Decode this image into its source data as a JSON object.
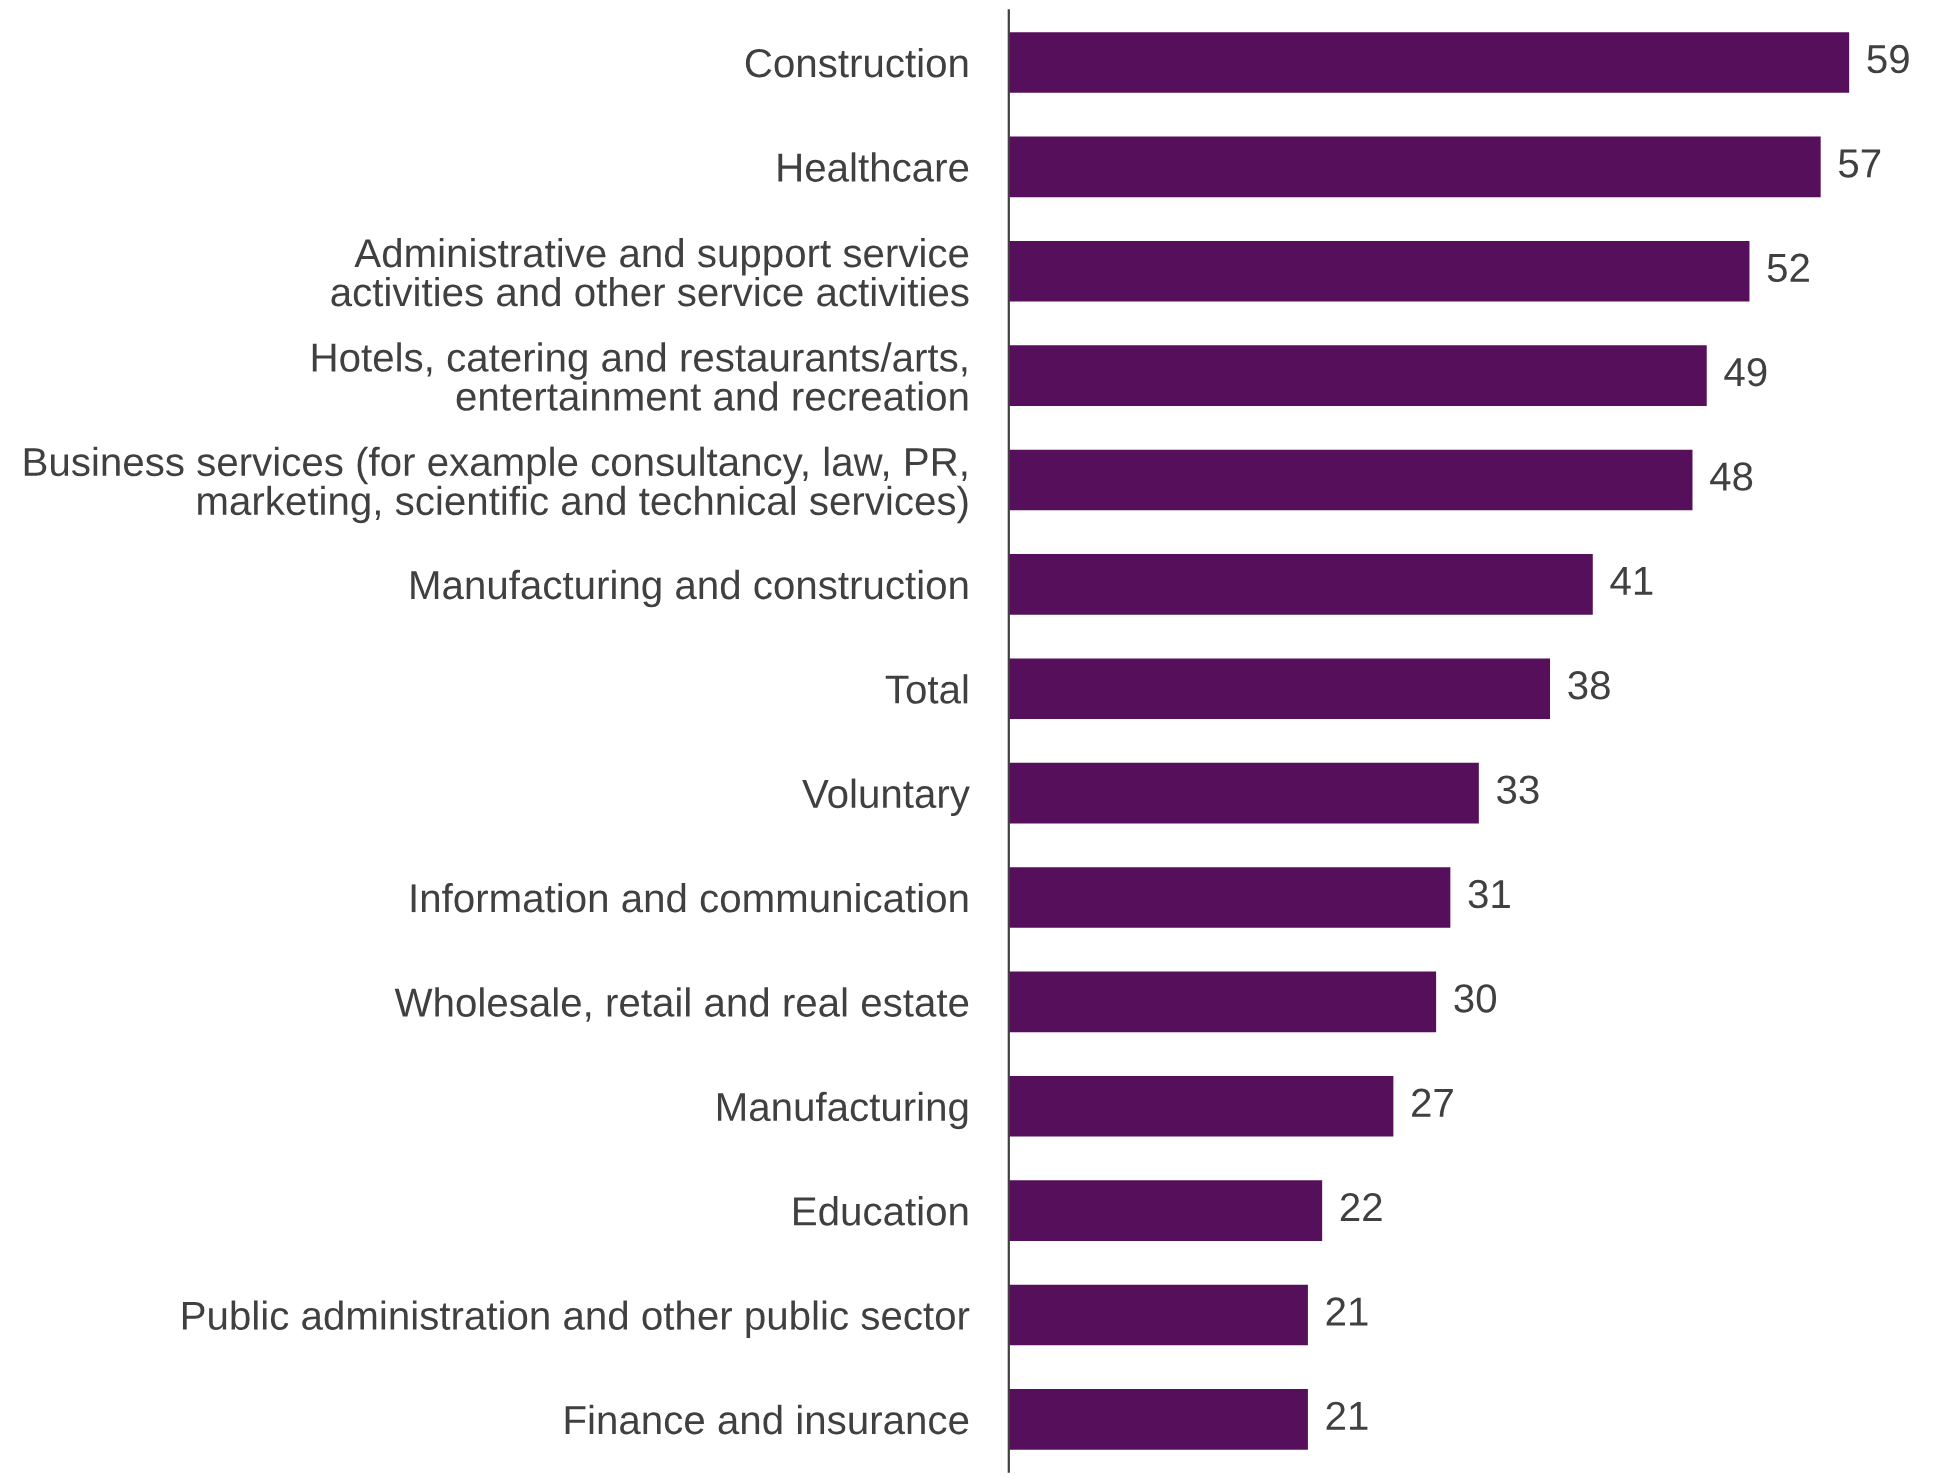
{
  "chart_data": {
    "type": "bar",
    "orientation": "horizontal",
    "categories": [
      "Construction",
      "Healthcare",
      "Administrative and support service\nactivities and other service activities",
      "Hotels, catering and restaurants/arts,\nentertainment and recreation",
      "Business services (for example consultancy, law, PR,\nmarketing, scientific and technical services)",
      "Manufacturing and construction",
      "Total",
      "Voluntary",
      "Information and communication",
      "Wholesale, retail and real estate",
      "Manufacturing",
      "Education",
      "Public administration and other public sector",
      "Finance and insurance"
    ],
    "values": [
      59,
      57,
      52,
      49,
      48,
      41,
      38,
      33,
      31,
      30,
      27,
      22,
      21,
      21
    ],
    "color": "#560f5a",
    "data_labels": true
  }
}
